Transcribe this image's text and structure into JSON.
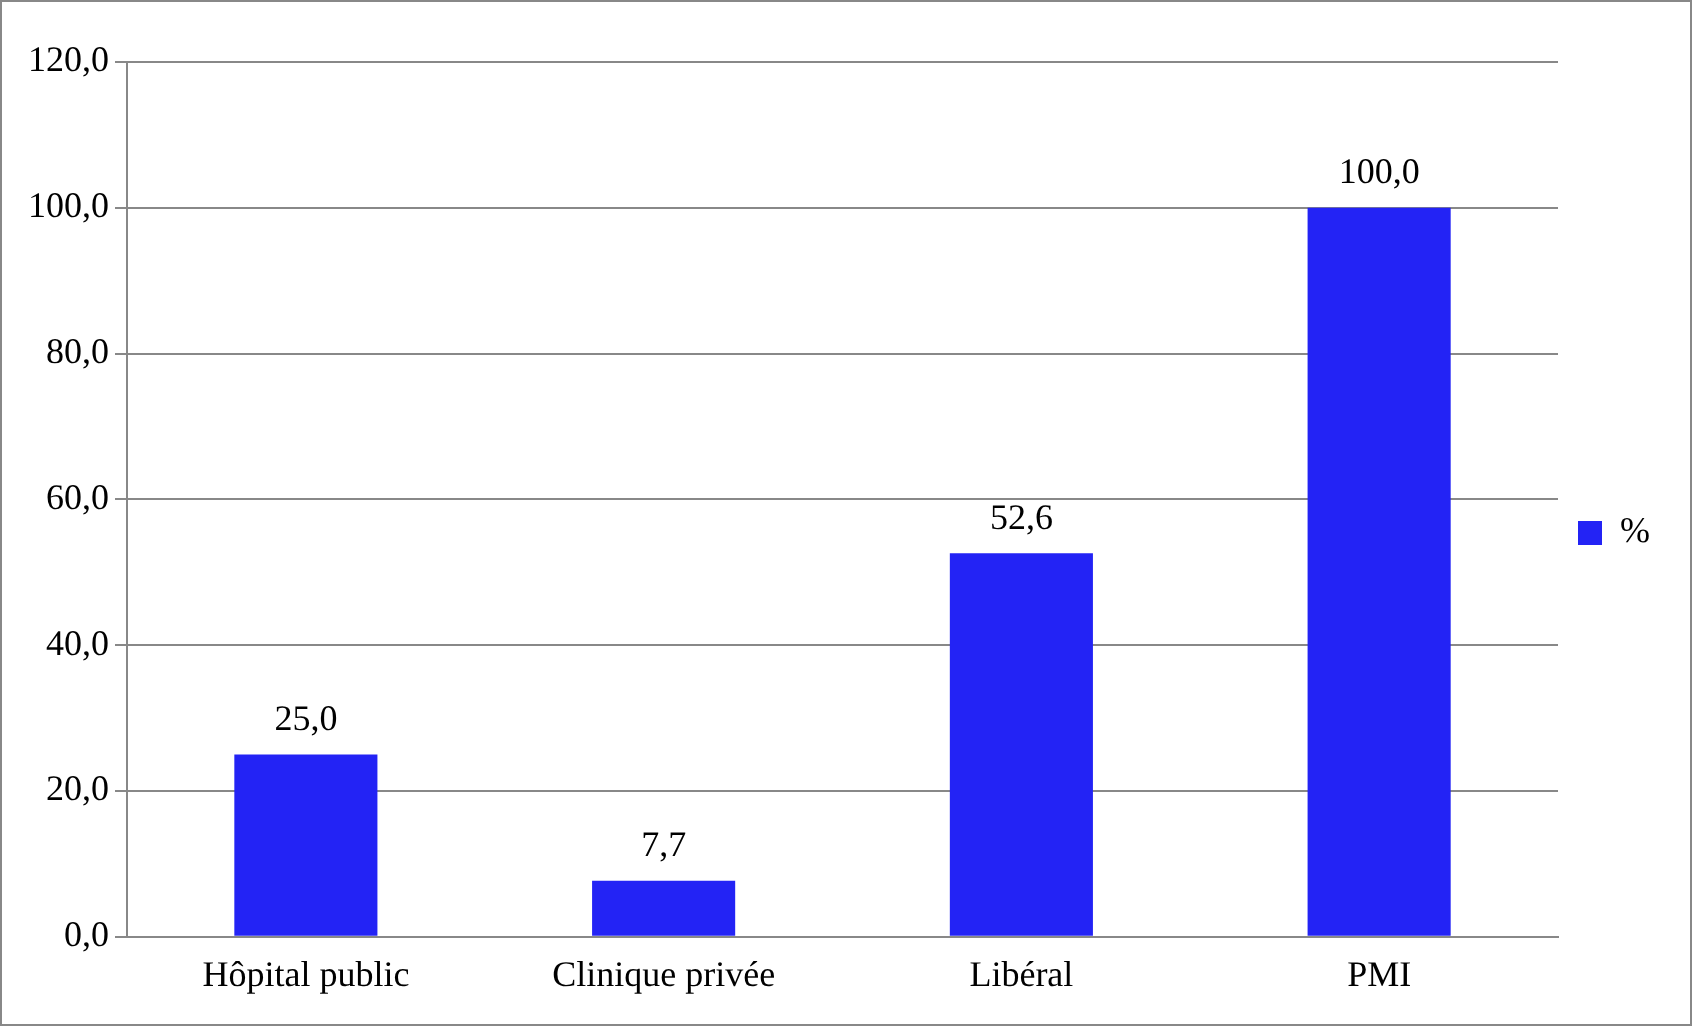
{
  "chart_data": {
    "type": "bar",
    "categories": [
      "Hôpital public",
      "Clinique privée",
      "Libéral",
      "PMI"
    ],
    "series": [
      {
        "name": "%",
        "color": "#2323f5",
        "values": [
          25.0,
          7.7,
          52.6,
          100.0
        ],
        "value_labels": [
          "25,0",
          "7,7",
          "52,6",
          "100,0"
        ]
      }
    ],
    "ylim": [
      0,
      120
    ],
    "yticks": [
      {
        "value": 0,
        "label": "0,0"
      },
      {
        "value": 20,
        "label": "20,0"
      },
      {
        "value": 40,
        "label": "40,0"
      },
      {
        "value": 60,
        "label": "60,0"
      },
      {
        "value": 80,
        "label": "80,0"
      },
      {
        "value": 100,
        "label": "100,0"
      },
      {
        "value": 120,
        "label": "120,0"
      }
    ],
    "grid": "y",
    "legend": "right"
  }
}
